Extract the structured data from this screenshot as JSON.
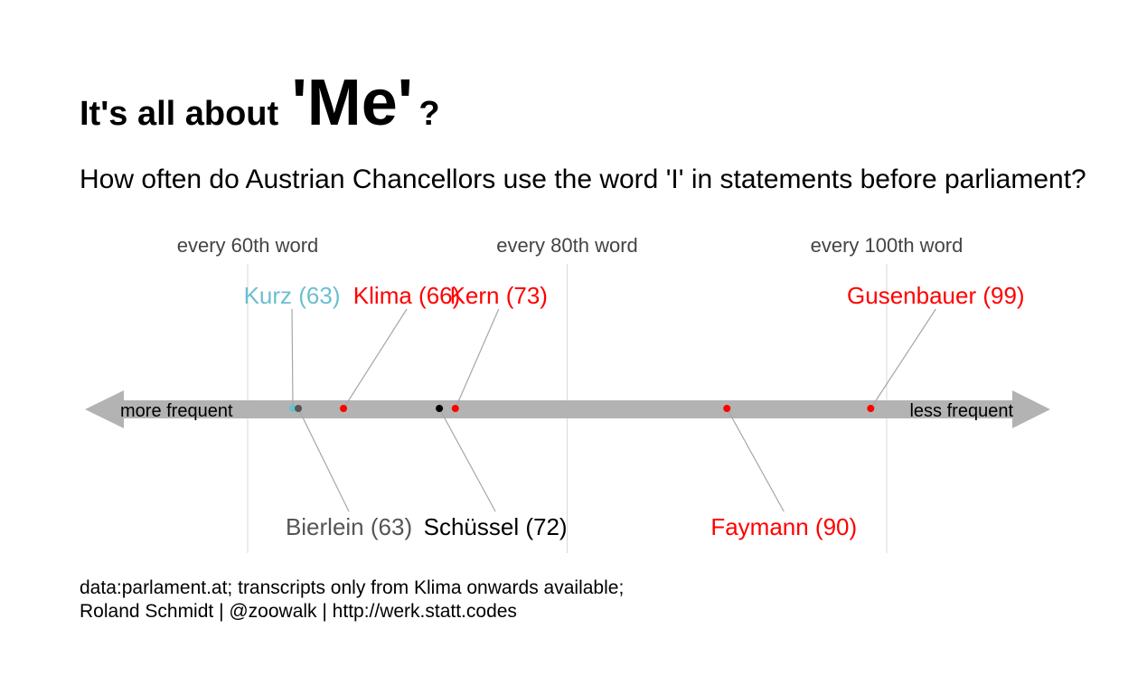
{
  "header": {
    "title_prefix": "It's all about",
    "title_emphasis": "'Me'",
    "title_suffix": "?",
    "subtitle": "How often do Austrian Chancellors use the word 'I' in statements before parliament?"
  },
  "axis": {
    "left_label": "more frequent",
    "right_label": "less frequent"
  },
  "caption": {
    "line1": "data:parlament.at; transcripts only from Klima onwards available;",
    "line2": "Roland Schmidt | @zoowalk | http://werk.statt.codes"
  },
  "colors": {
    "axis_arrow": "#b3b3b3",
    "gridline": "#d9d9d9",
    "connector": "#a6a6a6",
    "red": "#ff0000",
    "light_blue": "#6bbfd0",
    "dark_grey": "#555555",
    "black": "#000000"
  },
  "chart_data": {
    "type": "scatter",
    "title": "It's all about 'Me'?",
    "subtitle": "How often do Austrian Chancellors use the word 'I' in statements before parliament?",
    "xlim": [
      45,
      110
    ],
    "x_ticks": [
      60,
      80,
      100
    ],
    "x_tick_labels": [
      "every 60th word",
      "every 80th word",
      "every 100th word"
    ],
    "grid": true,
    "points": [
      {
        "label": "Kurz (63)",
        "value": 63,
        "color": "#6bbfd0",
        "label_side": "top"
      },
      {
        "label": "Bierlein (63)",
        "value": 63,
        "color": "#555555",
        "label_side": "bottom"
      },
      {
        "label": "Klima (66)",
        "value": 66,
        "color": "#ff0000",
        "label_side": "top"
      },
      {
        "label": "Schüssel (72)",
        "value": 72,
        "color": "#000000",
        "label_side": "bottom"
      },
      {
        "label": "Kern (73)",
        "value": 73,
        "color": "#ff0000",
        "label_side": "top"
      },
      {
        "label": "Faymann (90)",
        "value": 90,
        "color": "#ff0000",
        "label_side": "bottom"
      },
      {
        "label": "Gusenbauer (99)",
        "value": 99,
        "color": "#ff0000",
        "label_side": "top"
      }
    ]
  }
}
